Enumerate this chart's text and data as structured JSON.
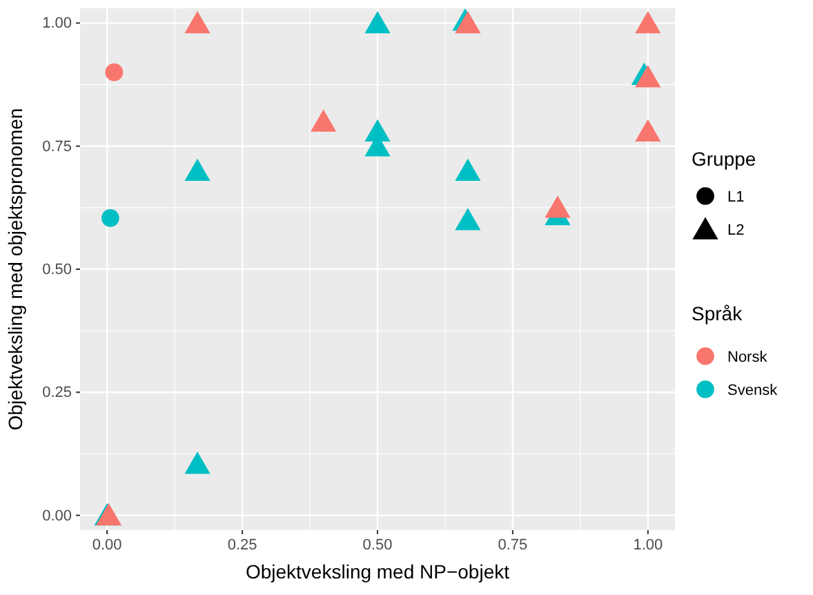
{
  "chart_data": {
    "type": "scatter",
    "xlabel": "Objektveksling med NP−objekt",
    "ylabel": "Objektveksling med objektspronomen",
    "xlim": [
      -0.05,
      1.05
    ],
    "ylim": [
      -0.03,
      1.03
    ],
    "xticks": [
      {
        "value": 0,
        "label": "0.00"
      },
      {
        "value": 0.25,
        "label": "0.25"
      },
      {
        "value": 0.5,
        "label": "0.50"
      },
      {
        "value": 0.75,
        "label": "0.75"
      },
      {
        "value": 1,
        "label": "1.00"
      }
    ],
    "yticks": [
      {
        "value": 0,
        "label": "0.00"
      },
      {
        "value": 0.25,
        "label": "0.25"
      },
      {
        "value": 0.5,
        "label": "0.50"
      },
      {
        "value": 0.75,
        "label": "0.75"
      },
      {
        "value": 1,
        "label": "1.00"
      }
    ],
    "grid": true,
    "legend": "right",
    "legend_title": "Gruppe",
    "annotations": [
      "L1",
      "L2",
      "Språk"
    ],
    "series": [
      {
        "name": "Norsk",
        "color": "#f8766d",
        "marker": "circle",
        "x": [
          0.013
        ],
        "values": [
          0.9
        ]
      },
      {
        "name": "Svensk",
        "color": "#00bfc4",
        "marker": "circle",
        "x": [
          0.006
        ],
        "values": [
          0.604
        ]
      },
      {
        "color": "#00bfc4",
        "marker": "triangle",
        "x": [
          0,
          0.167,
          0.167,
          0.5,
          0.5,
          0.5,
          0.662,
          0.667,
          0.667,
          0.833,
          0.993
        ],
        "values": [
          0,
          0.7,
          0.105,
          1,
          0.78,
          0.75,
          1.005,
          0.7,
          0.6,
          0.61,
          0.895
        ]
      },
      {
        "color": "#f8766d",
        "marker": "triangle",
        "x": [
          0.003,
          0.167,
          0.4,
          0.667,
          0.833,
          1,
          1,
          1
        ],
        "values": [
          0,
          1,
          0.8,
          1,
          0.625,
          1,
          0.89,
          0.78
        ]
      }
    ]
  }
}
